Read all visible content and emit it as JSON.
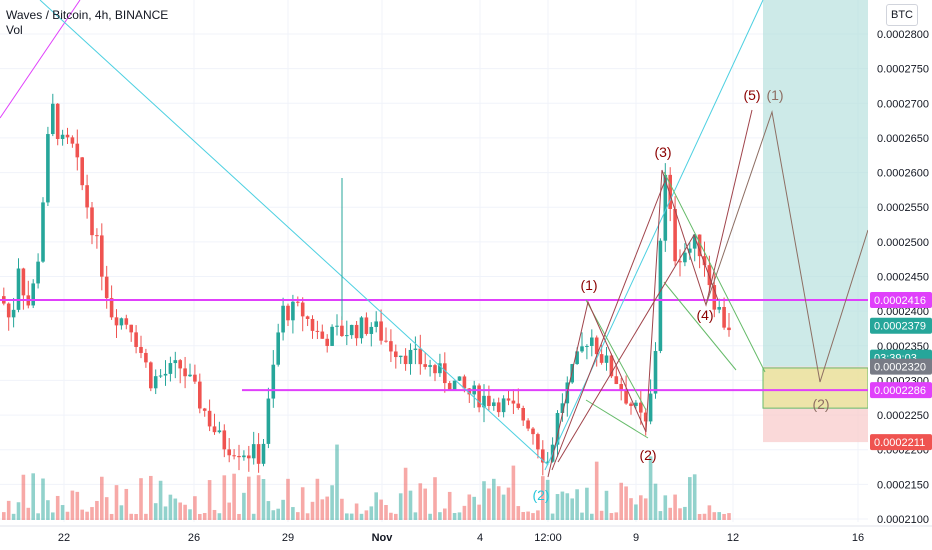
{
  "header": {
    "title": "Waves / Bitcoin, 4h, BINANCE",
    "indicator": "Vol",
    "currency_button": "BTC"
  },
  "price_axis": {
    "ticks": [
      "0.0002800",
      "0.0002750",
      "0.0002700",
      "0.0002650",
      "0.0002600",
      "0.0002550",
      "0.0002500",
      "0.0002450",
      "0.0002400",
      "0.0002350",
      "0.0002300",
      "0.0002250",
      "0.0002200",
      "0.0002150",
      "0.0002100"
    ],
    "tick_values": [
      0.00028,
      0.000275,
      0.00027,
      0.000265,
      0.00026,
      0.000255,
      0.00025,
      0.000245,
      0.00024,
      0.000235,
      0.00023,
      0.000225,
      0.00022,
      0.000215,
      0.00021
    ],
    "labels": [
      {
        "text": "0.0002416",
        "value": 0.0002416,
        "color": "#e040fb"
      },
      {
        "text": "0.0002379",
        "value": 0.0002379,
        "color": "#26a69a"
      },
      {
        "text": "03:39:03",
        "value": 0.0002333,
        "color": "#26a69a"
      },
      {
        "text": "0.0002320",
        "value": 0.000232,
        "color": "#787b86"
      },
      {
        "text": "0.0002286",
        "value": 0.0002286,
        "color": "#e040fb"
      },
      {
        "text": "0.0002211",
        "value": 0.0002211,
        "color": "#ef5350"
      }
    ]
  },
  "time_axis": {
    "labels": [
      "22",
      "26",
      "29",
      "Nov",
      "4",
      "12:00",
      "9",
      "12",
      "16"
    ],
    "bold": [
      "Nov"
    ]
  },
  "annotations": [
    {
      "text": "(1)",
      "color": "#8b0000"
    },
    {
      "text": "(2)",
      "color": "#8b0000"
    },
    {
      "text": "(3)",
      "color": "#8b0000"
    },
    {
      "text": "(4)",
      "color": "#8b0000"
    },
    {
      "text": "(5)",
      "color": "#8b0000"
    },
    {
      "text": "(1)",
      "color": "#8d6e63"
    },
    {
      "text": "(2)",
      "color": "#8d6e63"
    },
    {
      "text": "(2)",
      "color": "#26c6da"
    }
  ],
  "colors": {
    "up": "#26a69a",
    "down": "#ef5350",
    "magenta": "#e040fb",
    "cyan": "#4dd0e1",
    "green": "#66bb6a",
    "maroon": "#8b0000",
    "brown": "#8d6e63",
    "grid": "#f0f3fa"
  },
  "chart_data": {
    "type": "candlestick",
    "title": "Waves / Bitcoin, 4h, BINANCE",
    "ylim": [
      0.0002095,
      0.000284
    ],
    "horizontal_levels": [
      0.0002416,
      0.0002286
    ],
    "last_price": 0.0002379
  }
}
